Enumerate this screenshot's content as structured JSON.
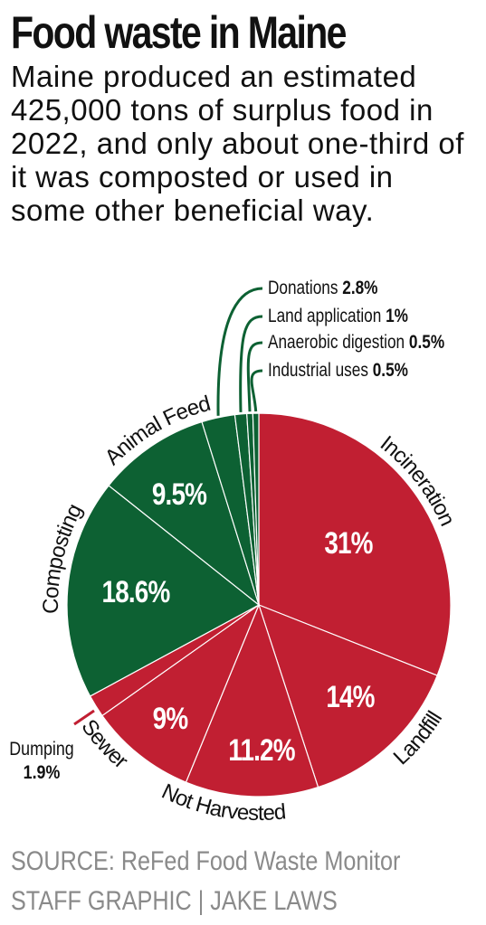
{
  "header": {
    "title": "Food waste in Maine",
    "subtitle": "Maine produced an estimated 425,000 tons of surplus food in 2022, and only about one-third of it was composted or used in some other beneficial way."
  },
  "chart_data": {
    "type": "pie",
    "unit": "%",
    "colors": {
      "disposed": "#c11f32",
      "beneficial": "#0d6133",
      "separator": "#ffffff"
    },
    "slices": [
      {
        "name": "Incineration",
        "value": 31,
        "label": "31%",
        "group": "disposed"
      },
      {
        "name": "Landfill",
        "value": 14,
        "label": "14%",
        "group": "disposed"
      },
      {
        "name": "Not Harvested",
        "value": 11.2,
        "label": "11.2%",
        "group": "disposed"
      },
      {
        "name": "Sewer",
        "value": 9,
        "label": "9%",
        "group": "disposed"
      },
      {
        "name": "Dumping",
        "value": 1.9,
        "label": "1.9%",
        "group": "disposed"
      },
      {
        "name": "Composting",
        "value": 18.6,
        "label": "18.6%",
        "group": "beneficial"
      },
      {
        "name": "Animal Feed",
        "value": 9.5,
        "label": "9.5%",
        "group": "beneficial"
      },
      {
        "name": "Donations",
        "value": 2.8,
        "label": "2.8%",
        "group": "beneficial"
      },
      {
        "name": "Land application",
        "value": 1,
        "label": "1%",
        "group": "beneficial"
      },
      {
        "name": "Anaerobic digestion",
        "value": 0.5,
        "label": "0.5%",
        "group": "beneficial"
      },
      {
        "name": "Industrial uses",
        "value": 0.5,
        "label": "0.5%",
        "group": "beneficial"
      }
    ]
  },
  "footer": {
    "source": "SOURCE: ReFed Food Waste Monitor",
    "credit": "STAFF GRAPHIC | JAKE LAWS"
  }
}
